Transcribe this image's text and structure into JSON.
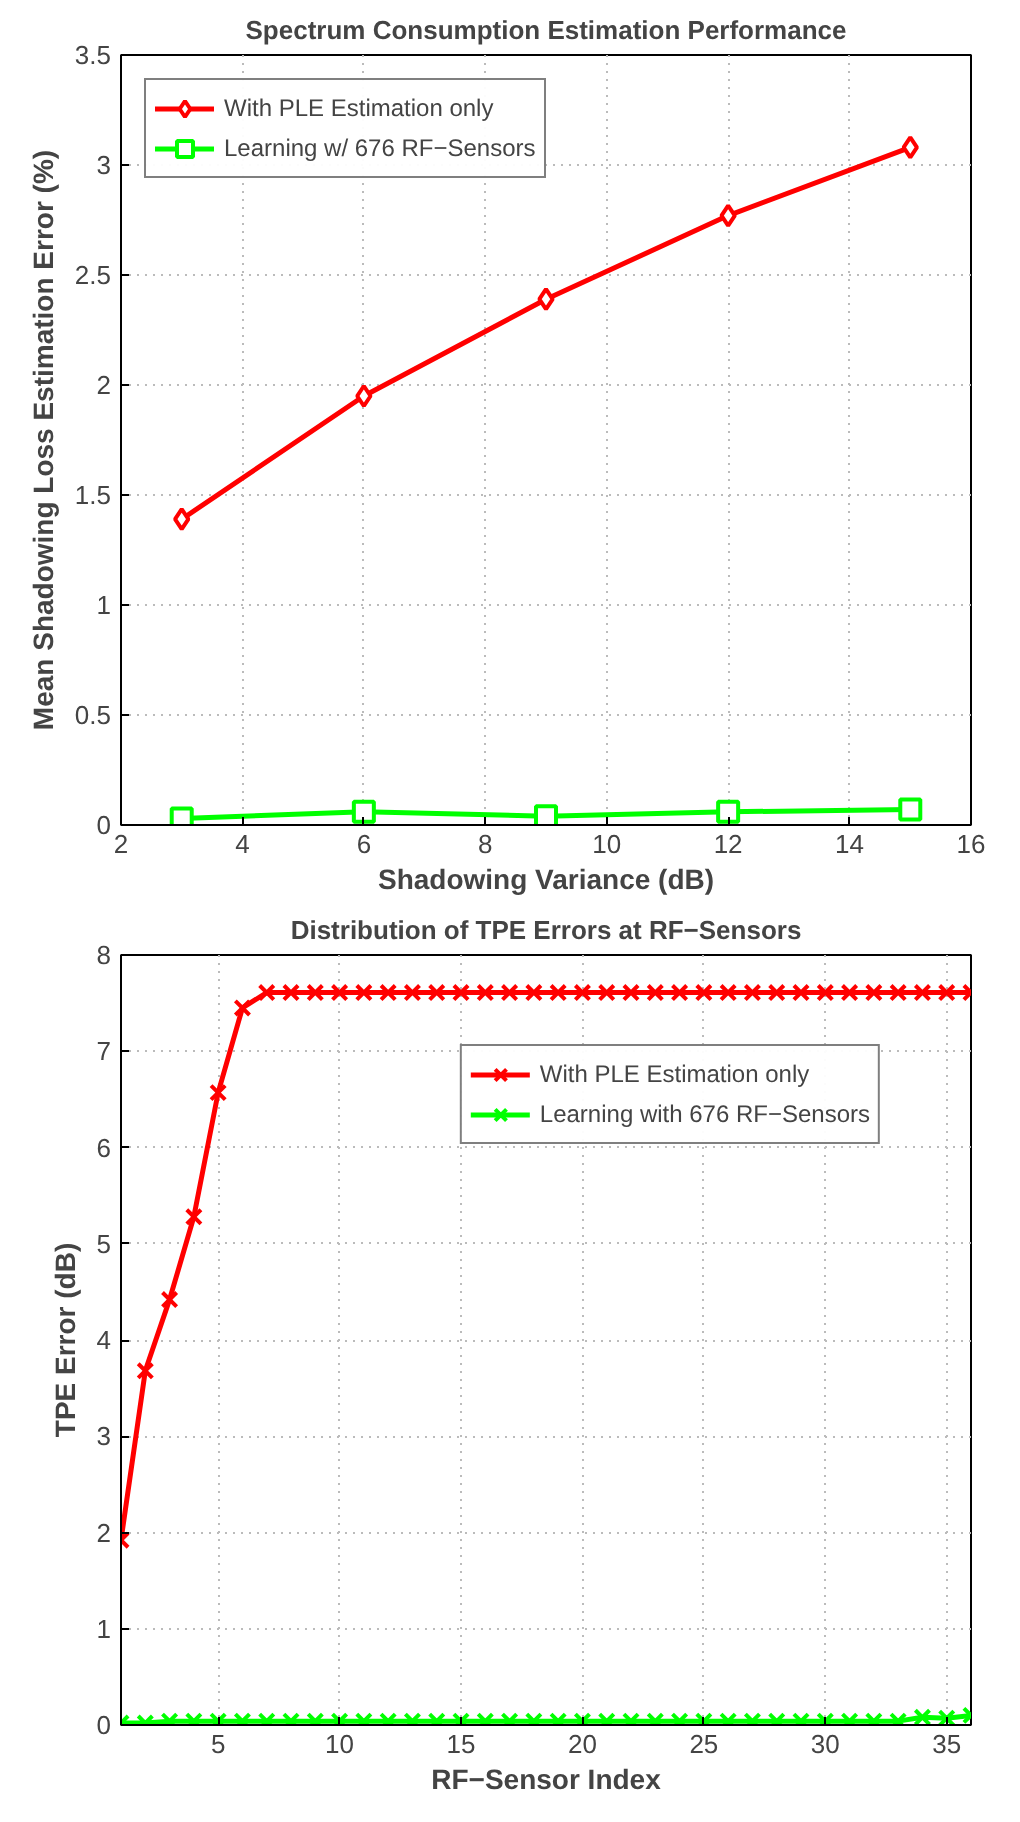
{
  "chart_data": [
    {
      "type": "line",
      "title": "Spectrum Consumption Estimation Performance",
      "xlabel": "Shadowing Variance (dB)",
      "ylabel": "Mean Shadowing Loss Estimation Error (%)",
      "x": [
        3,
        6,
        9,
        12,
        15
      ],
      "xlim": [
        2,
        16
      ],
      "xticks": [
        2,
        4,
        6,
        8,
        10,
        12,
        14,
        16
      ],
      "ylim": [
        0,
        3.5
      ],
      "yticks": [
        0,
        0.5,
        1,
        1.5,
        2,
        2.5,
        3,
        3.5
      ],
      "grid": true,
      "legend": "top left",
      "line_style": "solid",
      "series": [
        {
          "name": "With PLE Estimation only",
          "color": "#ff0000",
          "marker": "diamond",
          "values": [
            1.39,
            1.95,
            2.39,
            2.77,
            3.08
          ]
        },
        {
          "name": "Learning w/ 676 RF−Sensors",
          "color": "#00ff00",
          "marker": "square",
          "values": [
            0.03,
            0.06,
            0.04,
            0.06,
            0.07
          ]
        }
      ]
    },
    {
      "type": "line",
      "title": "Distribution of TPE Errors at RF−Sensors",
      "xlabel": "RF−Sensor Index",
      "ylabel": "TPE Error (dB)",
      "x": [
        1,
        2,
        3,
        4,
        5,
        6,
        7,
        8,
        9,
        10,
        11,
        12,
        13,
        14,
        15,
        16,
        17,
        18,
        19,
        20,
        21,
        22,
        23,
        24,
        25,
        26,
        27,
        28,
        29,
        30,
        31,
        32,
        33,
        34,
        35,
        36
      ],
      "xlim": [
        1,
        36
      ],
      "xticks": [
        5,
        10,
        15,
        20,
        25,
        30,
        35
      ],
      "ylim": [
        0,
        8
      ],
      "yticks": [
        0,
        1,
        2,
        3,
        4,
        5,
        6,
        7,
        8
      ],
      "grid": true,
      "legend": "top right",
      "line_style": "solid",
      "series": [
        {
          "name": "With PLE Estimation only",
          "color": "#ff0000",
          "marker": "cross",
          "values": [
            1.92,
            3.68,
            4.42,
            5.28,
            6.57,
            7.45,
            7.61,
            7.61,
            7.61,
            7.61,
            7.61,
            7.61,
            7.61,
            7.61,
            7.61,
            7.61,
            7.61,
            7.61,
            7.61,
            7.61,
            7.61,
            7.61,
            7.61,
            7.61,
            7.61,
            7.61,
            7.61,
            7.61,
            7.61,
            7.61,
            7.61,
            7.61,
            7.61,
            7.61,
            7.61,
            7.61
          ]
        },
        {
          "name": "Learning with 676 RF−Sensors",
          "color": "#00ff00",
          "marker": "cross",
          "values": [
            0.02,
            0.02,
            0.04,
            0.04,
            0.04,
            0.04,
            0.04,
            0.04,
            0.04,
            0.04,
            0.04,
            0.04,
            0.04,
            0.04,
            0.04,
            0.04,
            0.04,
            0.04,
            0.04,
            0.04,
            0.04,
            0.04,
            0.04,
            0.04,
            0.04,
            0.04,
            0.04,
            0.04,
            0.04,
            0.04,
            0.04,
            0.04,
            0.04,
            0.08,
            0.07,
            0.1
          ]
        }
      ]
    }
  ]
}
